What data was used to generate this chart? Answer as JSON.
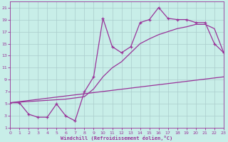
{
  "xlabel": "Windchill (Refroidissement éolien,°C)",
  "xlim": [
    0,
    23
  ],
  "ylim": [
    1,
    22
  ],
  "xticks": [
    0,
    1,
    2,
    3,
    4,
    5,
    6,
    7,
    8,
    9,
    10,
    11,
    12,
    13,
    14,
    15,
    16,
    17,
    18,
    19,
    20,
    21,
    22,
    23
  ],
  "yticks": [
    1,
    3,
    5,
    7,
    9,
    11,
    13,
    15,
    17,
    19,
    21
  ],
  "bg_color": "#c8eee8",
  "line_color": "#993399",
  "grid_color": "#aacccc",
  "line1_x": [
    0,
    1,
    2,
    3,
    4,
    5,
    6,
    7,
    8,
    9,
    10,
    11,
    12,
    13,
    14,
    15,
    16,
    17,
    18,
    19,
    20,
    21,
    22,
    23
  ],
  "line1_y": [
    5.2,
    5.2,
    3.3,
    2.8,
    2.8,
    5.0,
    3.0,
    2.2,
    7.0,
    9.5,
    19.2,
    14.5,
    13.5,
    14.5,
    18.5,
    19.0,
    21.0,
    19.2,
    19.0,
    19.0,
    18.5,
    18.5,
    15.0,
    13.5
  ],
  "line2_x": [
    0,
    23
  ],
  "line2_y": [
    5.2,
    9.5
  ],
  "line3_x": [
    0,
    3,
    6,
    8,
    9,
    10,
    11,
    12,
    13,
    14,
    15,
    16,
    17,
    18,
    19,
    20,
    21,
    22,
    23
  ],
  "line3_y": [
    5.2,
    5.5,
    5.8,
    6.2,
    7.5,
    9.5,
    11.0,
    12.0,
    13.5,
    15.0,
    15.8,
    16.5,
    17.0,
    17.5,
    17.8,
    18.2,
    18.2,
    17.5,
    13.5
  ]
}
